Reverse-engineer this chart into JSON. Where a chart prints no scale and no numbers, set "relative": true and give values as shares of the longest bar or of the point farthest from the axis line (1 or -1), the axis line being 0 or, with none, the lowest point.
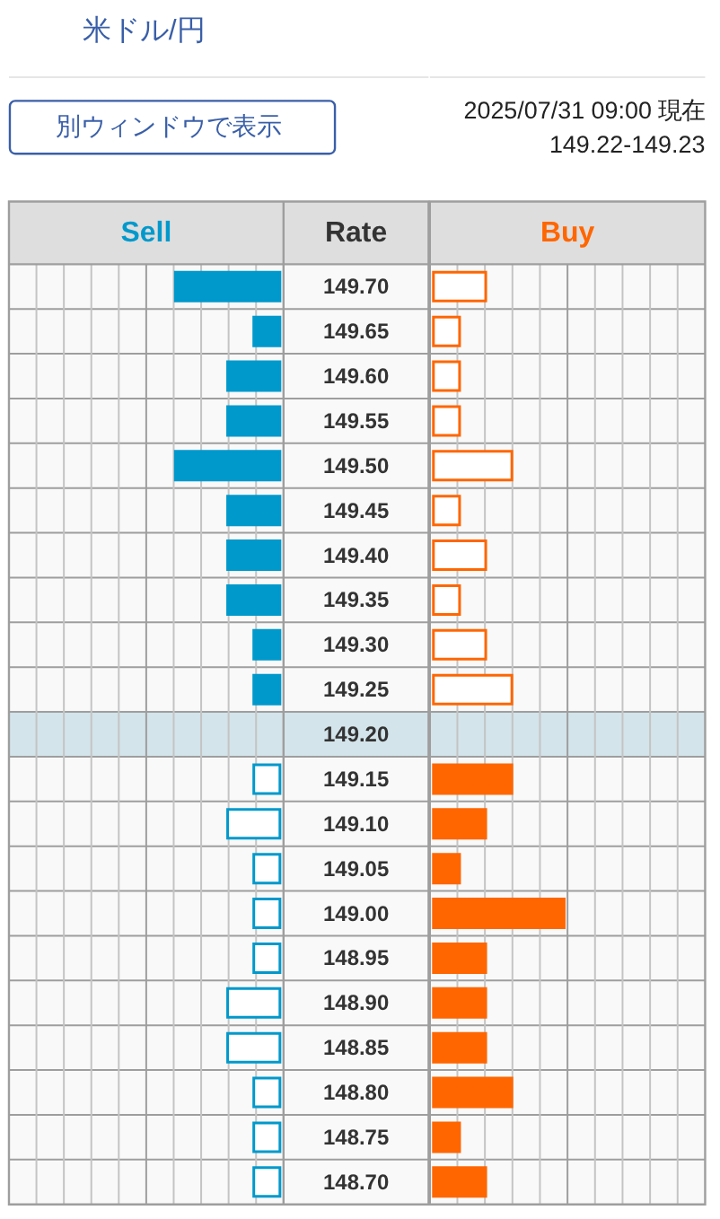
{
  "chart_data": [
    {
      "type": "bar",
      "orientation": "horizontal",
      "relative": true,
      "title": "米ドル/円",
      "annotations": [
        "別ウィンドウで表示"
      ],
      "ylabel": "Rate",
      "categories": [
        "149.70",
        "149.65",
        "149.60",
        "149.55",
        "149.50",
        "149.45",
        "149.40",
        "149.35",
        "149.30",
        "149.25",
        "149.20",
        "149.15",
        "149.10",
        "149.05",
        "149.00",
        "148.95",
        "148.90",
        "148.85",
        "148.80",
        "148.75",
        "148.70"
      ],
      "series": [
        {
          "name": "Sell",
          "color": "#0099cc",
          "values": [
            -1,
            -0.25,
            -0.5,
            -0.5,
            -1,
            -0.5,
            -0.5,
            -0.5,
            -0.25,
            -0.25,
            null,
            null,
            null,
            null,
            null,
            null,
            null,
            null,
            null,
            null,
            null
          ]
        },
        {
          "color": "#ffffff",
          "values": [
            null,
            null,
            null,
            null,
            null,
            null,
            null,
            null,
            null,
            null,
            null,
            -0.25,
            -0.5,
            -0.25,
            -0.25,
            -0.25,
            -0.5,
            -0.5,
            -0.25,
            -0.25,
            -0.25
          ]
        }
      ],
      "bands": [
        {
          "axis": "y",
          "from": "149.20",
          "to": "149.20",
          "color": "#d3e4ea"
        }
      ],
      "grid": true,
      "tick_labels": "y"
    },
    {
      "type": "bar",
      "orientation": "horizontal",
      "relative": true,
      "annotations": [
        "2025/07/31 09:00 現在",
        "149.22-149.23"
      ],
      "categories": [
        "149.70",
        "149.65",
        "149.60",
        "149.55",
        "149.50",
        "149.45",
        "149.40",
        "149.35",
        "149.30",
        "149.25",
        "149.20",
        "149.15",
        "149.10",
        "149.05",
        "149.00",
        "148.95",
        "148.90",
        "148.85",
        "148.80",
        "148.75",
        "148.70"
      ],
      "series": [
        {
          "name": "Buy",
          "color": "#ff6600",
          "values": [
            null,
            null,
            null,
            null,
            null,
            null,
            null,
            null,
            null,
            null,
            null,
            0.6,
            0.4,
            0.2,
            1,
            0.4,
            0.4,
            0.4,
            0.6,
            0.2,
            0.4
          ]
        },
        {
          "color": "#ffffff",
          "values": [
            0.4,
            0.2,
            0.2,
            0.2,
            0.6,
            0.2,
            0.4,
            0.2,
            0.4,
            0.6,
            null,
            null,
            null,
            null,
            null,
            null,
            null,
            null,
            null,
            null,
            null
          ]
        }
      ],
      "bands": [
        {
          "axis": "y",
          "from": "149.20",
          "to": "149.20",
          "color": "#d3e4ea"
        }
      ],
      "grid": true,
      "tick_labels": false
    }
  ]
}
